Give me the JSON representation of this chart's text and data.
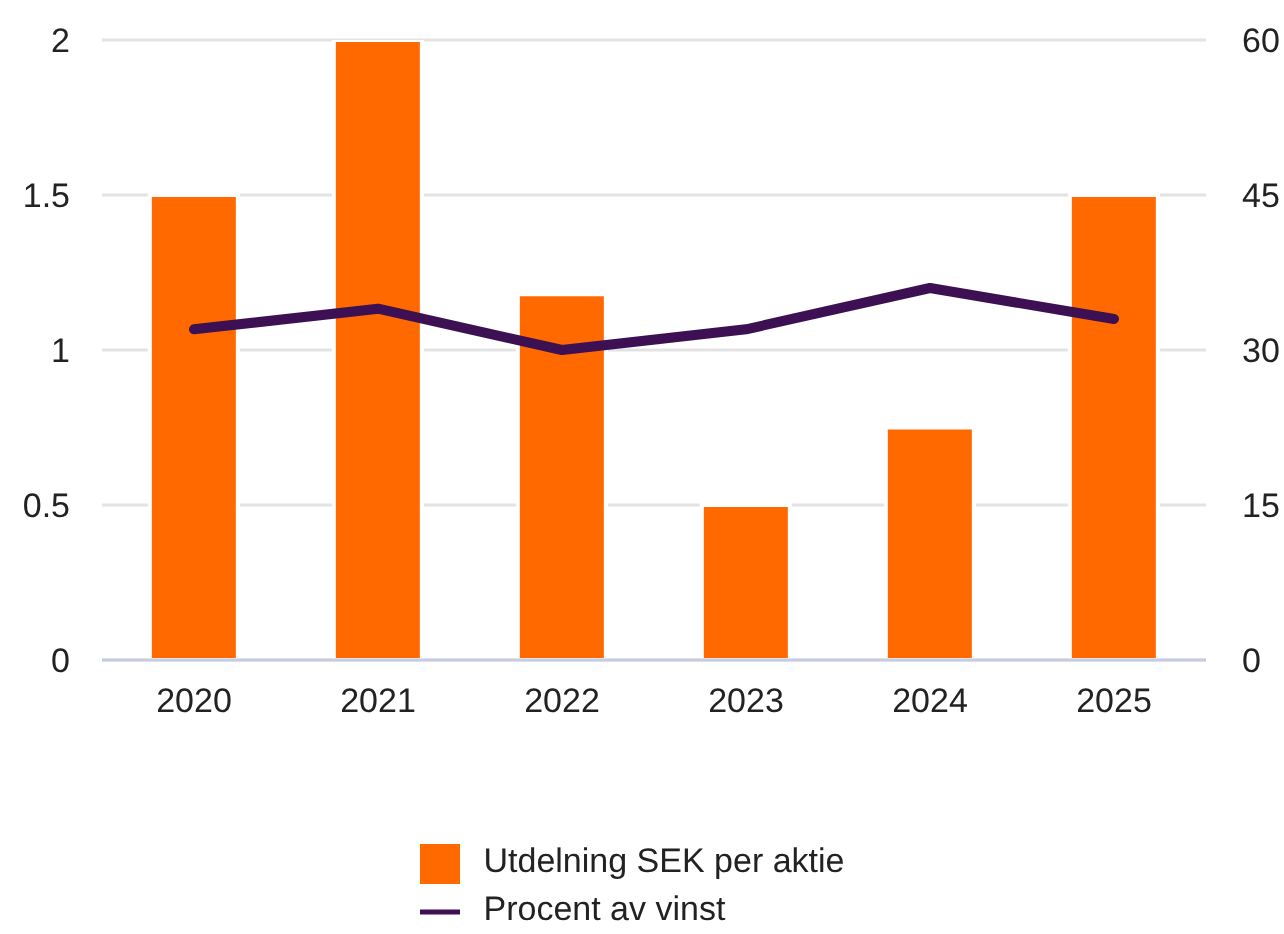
{
  "chart_data": {
    "type": "bar",
    "categories": [
      "2020",
      "2021",
      "2022",
      "2023",
      "2024",
      "2025"
    ],
    "series": [
      {
        "name": "Utdelning SEK per aktie",
        "color": "#ff6900",
        "values": [
          1.5,
          2,
          1.18,
          0.5,
          0.75,
          1.5
        ]
      },
      {
        "name": "Procent av vinst",
        "type": "line",
        "axis": "y2",
        "color": "#3c1053",
        "values": [
          32,
          34,
          30,
          32,
          36,
          33
        ]
      }
    ],
    "ylim": [
      0,
      2
    ],
    "yticks": [
      0,
      0.5,
      1,
      1.5,
      2
    ],
    "y2lim": [
      0,
      60
    ],
    "y2ticks": [
      0,
      15,
      30,
      45,
      60
    ],
    "grid": "y",
    "legend": "bottom",
    "marker": "none"
  }
}
